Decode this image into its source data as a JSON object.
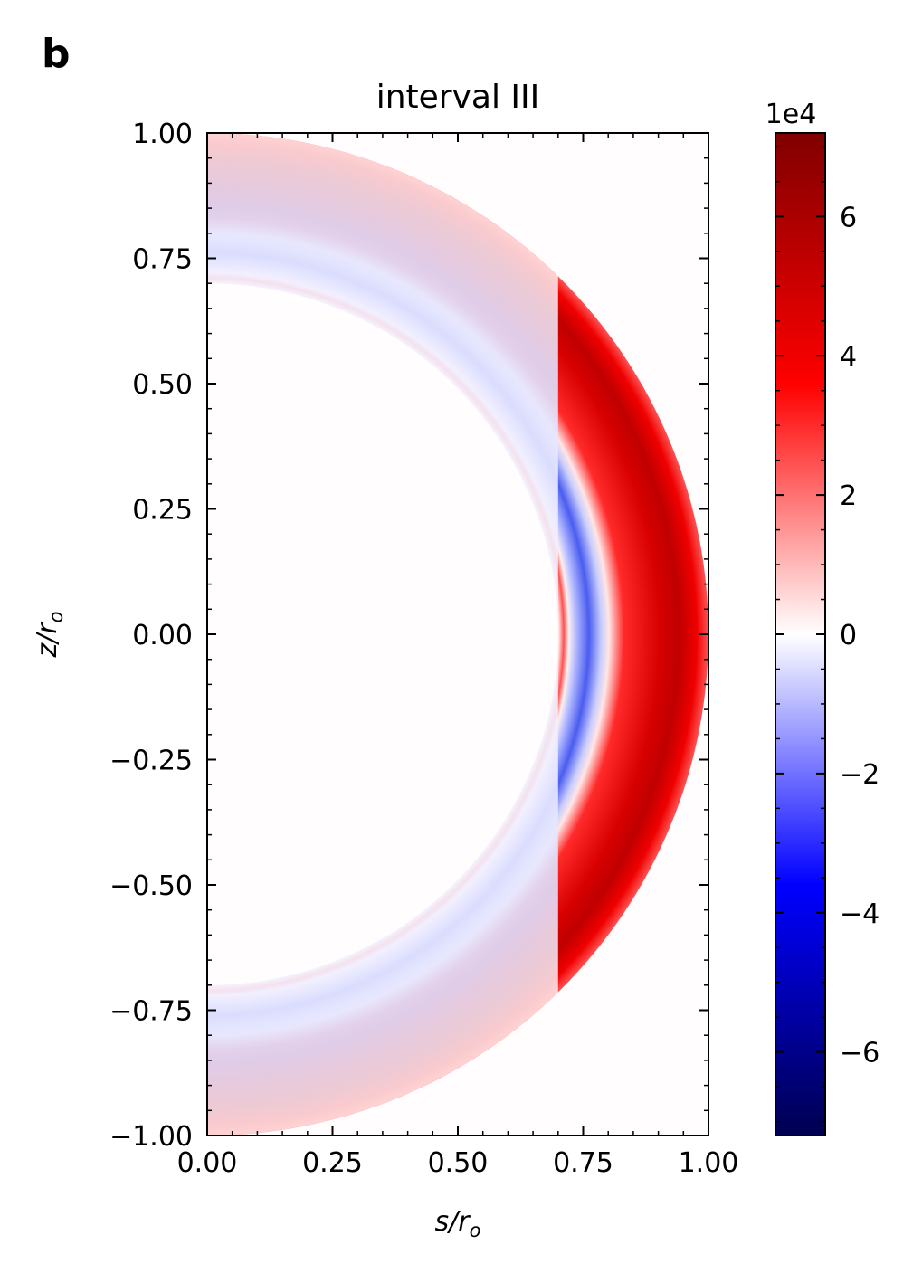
{
  "panel_label": "b",
  "chart_data": {
    "type": "heatmap",
    "title": "interval III",
    "xlabel": "s/r",
    "xlabel_sub": "o",
    "ylabel": "z/r",
    "ylabel_sub": "o",
    "xlim": [
      0.0,
      1.0
    ],
    "ylim": [
      -1.0,
      1.0
    ],
    "x_ticks": [
      0.0,
      0.25,
      0.5,
      0.75,
      1.0
    ],
    "x_tick_labels": [
      "0.00",
      "0.25",
      "0.50",
      "0.75",
      "1.00"
    ],
    "y_ticks": [
      1.0,
      0.75,
      0.5,
      0.25,
      0.0,
      -0.25,
      -0.5,
      -0.75,
      -1.0
    ],
    "y_tick_labels": [
      "1.00",
      "0.75",
      "0.50",
      "0.25",
      "0.00",
      "−0.25",
      "−0.50",
      "−0.75",
      "−1.00"
    ],
    "domain": {
      "shape": "meridional half-shell",
      "inner_radius": 0.7,
      "outer_radius": 1.0
    },
    "features": [
      {
        "name": "outer positive band",
        "r_range": [
          0.82,
          1.0
        ],
        "peak_value": 70000
      },
      {
        "name": "negative band",
        "r_range": [
          0.72,
          0.8
        ],
        "peak_value": -25000
      },
      {
        "name": "weak fluctuations near inner boundary",
        "r_range": [
          0.7,
          0.72
        ],
        "peak_value": 8000
      }
    ],
    "colorbar": {
      "colormap": "seismic",
      "range": [
        -72000,
        72000
      ],
      "multiplier": "1e4",
      "ticks": [
        6,
        4,
        2,
        0,
        -2,
        -4,
        -6
      ],
      "tick_labels": [
        "6",
        "4",
        "2",
        "0",
        "−2",
        "−4",
        "−6"
      ]
    },
    "grid": false
  },
  "colors": {
    "positive_max": "#800000",
    "positive_mid": "#ff0000",
    "zero": "#fffdfd",
    "negative_mid": "#0000ff",
    "negative_max": "#000050"
  }
}
